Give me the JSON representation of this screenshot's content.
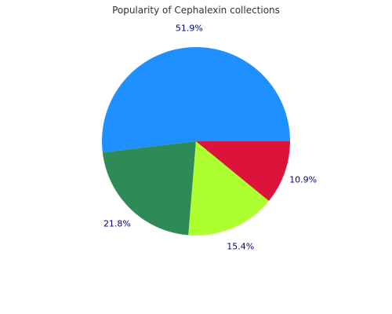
{
  "chart_data": {
    "type": "pie",
    "title": "Popularity of Cephalexin collections",
    "slices": [
      {
        "label": "51.9%",
        "value": 51.9,
        "color": "#1E90FF"
      },
      {
        "label": "21.8%",
        "value": 21.8,
        "color": "#2E8B57"
      },
      {
        "label": "15.4%",
        "value": 15.4,
        "color": "#ADFF2F"
      },
      {
        "label": "10.9%",
        "value": 10.9,
        "color": "#DC143C"
      }
    ],
    "start_angle_deg": 0,
    "direction": "counterclockwise",
    "legend": "none",
    "grid": false
  }
}
